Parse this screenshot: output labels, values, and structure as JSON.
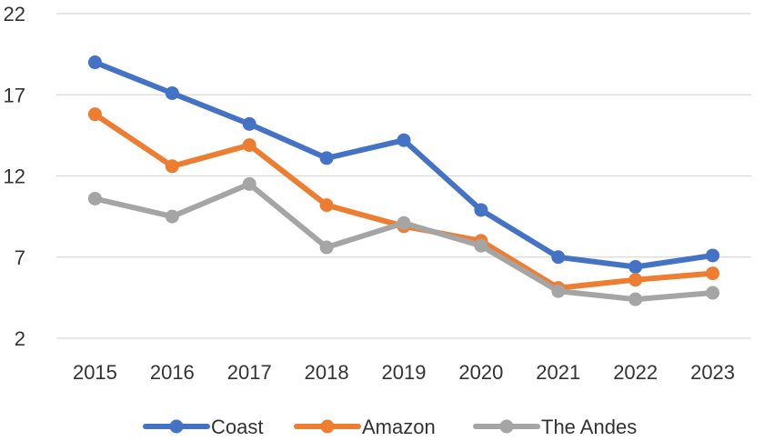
{
  "chart_data": {
    "type": "line",
    "title": "",
    "xlabel": "",
    "ylabel": "",
    "categories": [
      "2015",
      "2016",
      "2017",
      "2018",
      "2019",
      "2020",
      "2021",
      "2022",
      "2023"
    ],
    "ylim": [
      2,
      22
    ],
    "yticks": [
      2,
      7,
      12,
      17,
      22
    ],
    "grid": true,
    "legend_position": "bottom",
    "series": [
      {
        "name": "Coast",
        "color": "#4472C4",
        "values": [
          19.0,
          17.1,
          15.2,
          13.1,
          14.2,
          9.9,
          7.0,
          6.4,
          7.1
        ]
      },
      {
        "name": "Amazon",
        "color": "#ED7D31",
        "values": [
          15.8,
          12.6,
          13.9,
          10.2,
          8.9,
          8.0,
          5.1,
          5.6,
          6.0
        ]
      },
      {
        "name": "The Andes",
        "color": "#A5A5A5",
        "values": [
          10.6,
          9.5,
          11.5,
          7.6,
          9.1,
          7.7,
          4.9,
          4.4,
          4.8
        ]
      }
    ]
  }
}
